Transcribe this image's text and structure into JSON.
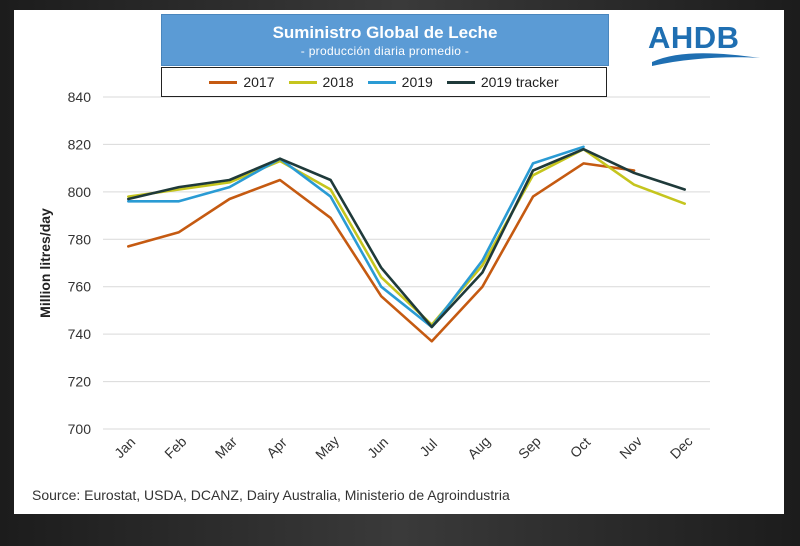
{
  "header": {
    "title": "Suministro Global de Leche",
    "subtitle": "- producción diaria promedio -"
  },
  "logo": {
    "text": "AHDB",
    "color": "#1f6fb2"
  },
  "source": "Source: Eurostat, USDA, DCANZ, Dairy Australia, Ministerio de Agroindustria",
  "chart_data": {
    "type": "line",
    "title": "Suministro Global de Leche",
    "subtitle": "- producción diaria promedio -",
    "xlabel": "",
    "ylabel": "Million litres/day",
    "categories": [
      "Jan",
      "Feb",
      "Mar",
      "Apr",
      "May",
      "Jun",
      "Jul",
      "Aug",
      "Sep",
      "Oct",
      "Nov",
      "Dec"
    ],
    "yticks": [
      700,
      720,
      740,
      760,
      780,
      800,
      820,
      840
    ],
    "ylim": [
      700,
      840
    ],
    "grid": true,
    "legend_position": "top",
    "series": [
      {
        "name": "2017",
        "color": "#c55a11",
        "values": [
          777,
          783,
          797,
          805,
          789,
          756,
          737,
          760,
          798,
          812,
          809,
          null
        ]
      },
      {
        "name": "2018",
        "color": "#c5c51e",
        "values": [
          798,
          801,
          804,
          813,
          801,
          764,
          744,
          769,
          807,
          818,
          803,
          795
        ]
      },
      {
        "name": "2019",
        "color": "#2a9bd4",
        "values": [
          796,
          796,
          802,
          814,
          798,
          760,
          743,
          771,
          812,
          819,
          null,
          null
        ]
      },
      {
        "name": "2019 tracker",
        "color": "#1f3a3a",
        "values": [
          797,
          802,
          805,
          814,
          805,
          768,
          743,
          766,
          809,
          818,
          808,
          801
        ]
      }
    ]
  }
}
